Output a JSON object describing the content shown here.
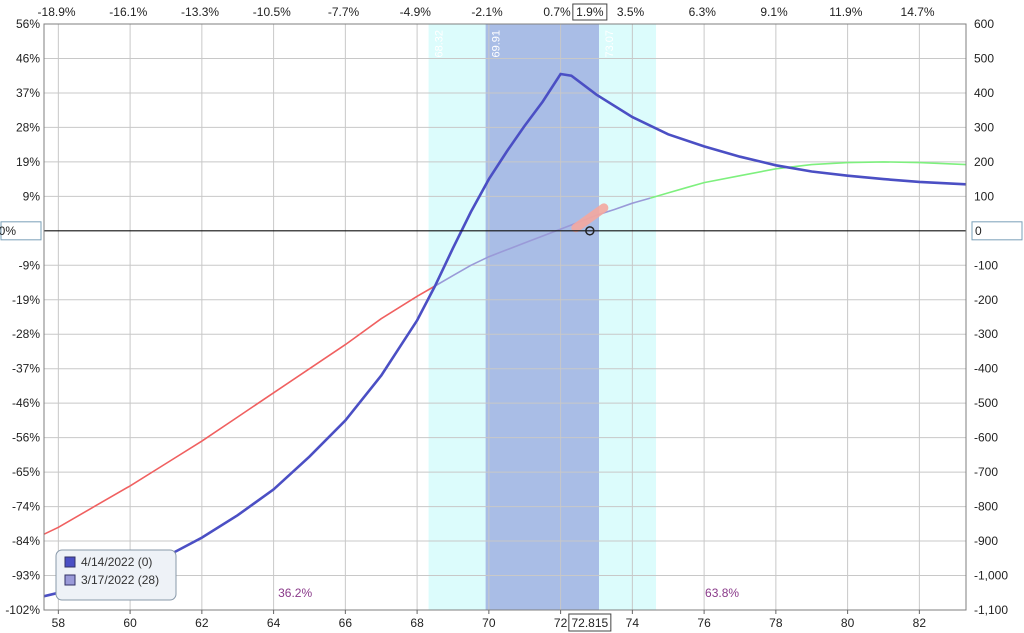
{
  "chart_data": {
    "type": "line",
    "x_range": [
      57.6,
      83.3
    ],
    "y_range": [
      -1100,
      600
    ],
    "x_ticks": [
      58,
      60,
      62,
      64,
      66,
      68,
      70,
      72,
      74,
      76,
      78,
      80,
      82
    ],
    "x_tick_labels": [
      "58",
      "60",
      "62",
      "64",
      "66",
      "68",
      "70",
      "72",
      "74",
      "76",
      "78",
      "80",
      "82"
    ],
    "current_price": 72.815,
    "current_price_label": "72.815",
    "y_right_ticks": [
      600,
      500,
      400,
      300,
      200,
      100,
      0,
      -100,
      -200,
      -300,
      -400,
      -500,
      -600,
      -700,
      -800,
      -900,
      -1000,
      -1100
    ],
    "y_right_labels": [
      "600",
      "500",
      "400",
      "300",
      "200",
      "100",
      "0",
      "-100",
      "-200",
      "-300",
      "-400",
      "-500",
      "-600",
      "-700",
      "-800",
      "-900",
      "-1,000",
      "-1,100"
    ],
    "y_left_labels": [
      "56%",
      "46%",
      "37%",
      "28%",
      "19%",
      "9%",
      "0%",
      "-9%",
      "-19%",
      "-28%",
      "-37%",
      "-46%",
      "-56%",
      "-65%",
      "-74%",
      "-84%",
      "-93%",
      "-102%"
    ],
    "zero_left_label": "0%",
    "zero_right_label": "0",
    "top_pct_labels": [
      {
        "x": 57.95,
        "label": "-18.9%"
      },
      {
        "x": 59.95,
        "label": "-16.1%"
      },
      {
        "x": 61.95,
        "label": "-13.3%"
      },
      {
        "x": 63.95,
        "label": "-10.5%"
      },
      {
        "x": 65.95,
        "label": "-7.7%"
      },
      {
        "x": 67.95,
        "label": "-4.9%"
      },
      {
        "x": 69.95,
        "label": "-2.1%"
      },
      {
        "x": 71.9,
        "label": "0.7%"
      },
      {
        "x": 73.95,
        "label": "3.5%"
      },
      {
        "x": 75.95,
        "label": "6.3%"
      },
      {
        "x": 77.95,
        "label": "9.1%"
      },
      {
        "x": 79.95,
        "label": "11.9%"
      },
      {
        "x": 81.95,
        "label": "14.7%"
      }
    ],
    "current_pct_label": "1.9%",
    "bands": [
      {
        "from": 68.32,
        "to": 74.66,
        "color": "#dcfcfc"
      },
      {
        "from": 69.91,
        "to": 73.07,
        "color": "#a9bde6"
      }
    ],
    "band_labels": [
      {
        "x": 68.32,
        "label": "68.32"
      },
      {
        "x": 69.91,
        "label": "69.91"
      },
      {
        "x": 73.07,
        "label": "73.07"
      },
      {
        "x": 74.66,
        "label": "74.66"
      }
    ],
    "probabilities": [
      {
        "x": 64.6,
        "label": "36.2%"
      },
      {
        "x": 76.5,
        "label": "63.8%"
      }
    ],
    "series": [
      {
        "name": "4/14/2022 (0)",
        "color": "#4b4fc4",
        "x": [
          57.6,
          58,
          59,
          60,
          61,
          62,
          63,
          64,
          65,
          66,
          67,
          68,
          68.5,
          69,
          69.5,
          70,
          70.5,
          71,
          71.5,
          72,
          72.3,
          73,
          74,
          75,
          76,
          77,
          78,
          79,
          80,
          81,
          82,
          83.3
        ],
        "y": [
          -1060,
          -1050,
          -1025,
          -990,
          -945,
          -890,
          -825,
          -750,
          -655,
          -550,
          -420,
          -260,
          -160,
          -50,
          55,
          150,
          230,
          305,
          375,
          455,
          450,
          395,
          330,
          280,
          245,
          215,
          190,
          172,
          160,
          150,
          142,
          135
        ]
      },
      {
        "name": "3/17/2022 (28)",
        "color": "#9a9ad8",
        "x": [
          57.6,
          58,
          59,
          60,
          61,
          62,
          63,
          64,
          65,
          66,
          67,
          68,
          68.5,
          69,
          69.5,
          70,
          70.5,
          71,
          71.5,
          72,
          72.5,
          73,
          73.5,
          74,
          74.5,
          75,
          75.5,
          76,
          77,
          78,
          79,
          80,
          81,
          82,
          83.3
        ],
        "y": [
          -880,
          -860,
          -800,
          -740,
          -675,
          -610,
          -540,
          -470,
          -400,
          -330,
          -255,
          -190,
          -160,
          -130,
          -100,
          -75,
          -55,
          -35,
          -15,
          5,
          25,
          45,
          62,
          80,
          95,
          110,
          125,
          140,
          160,
          180,
          192,
          198,
          200,
          198,
          192
        ],
        "loss_color": "#f06060",
        "gain_color": "#7ef07e",
        "muted_from": 68.5,
        "muted_to": 74.5
      }
    ],
    "legend": {
      "placement": "bottom-left",
      "entries": [
        {
          "label": "4/14/2022 (0)",
          "color": "#4b4fc4"
        },
        {
          "label": "3/17/2022 (28)",
          "color": "#9a9ad8"
        }
      ]
    },
    "grid": true
  }
}
